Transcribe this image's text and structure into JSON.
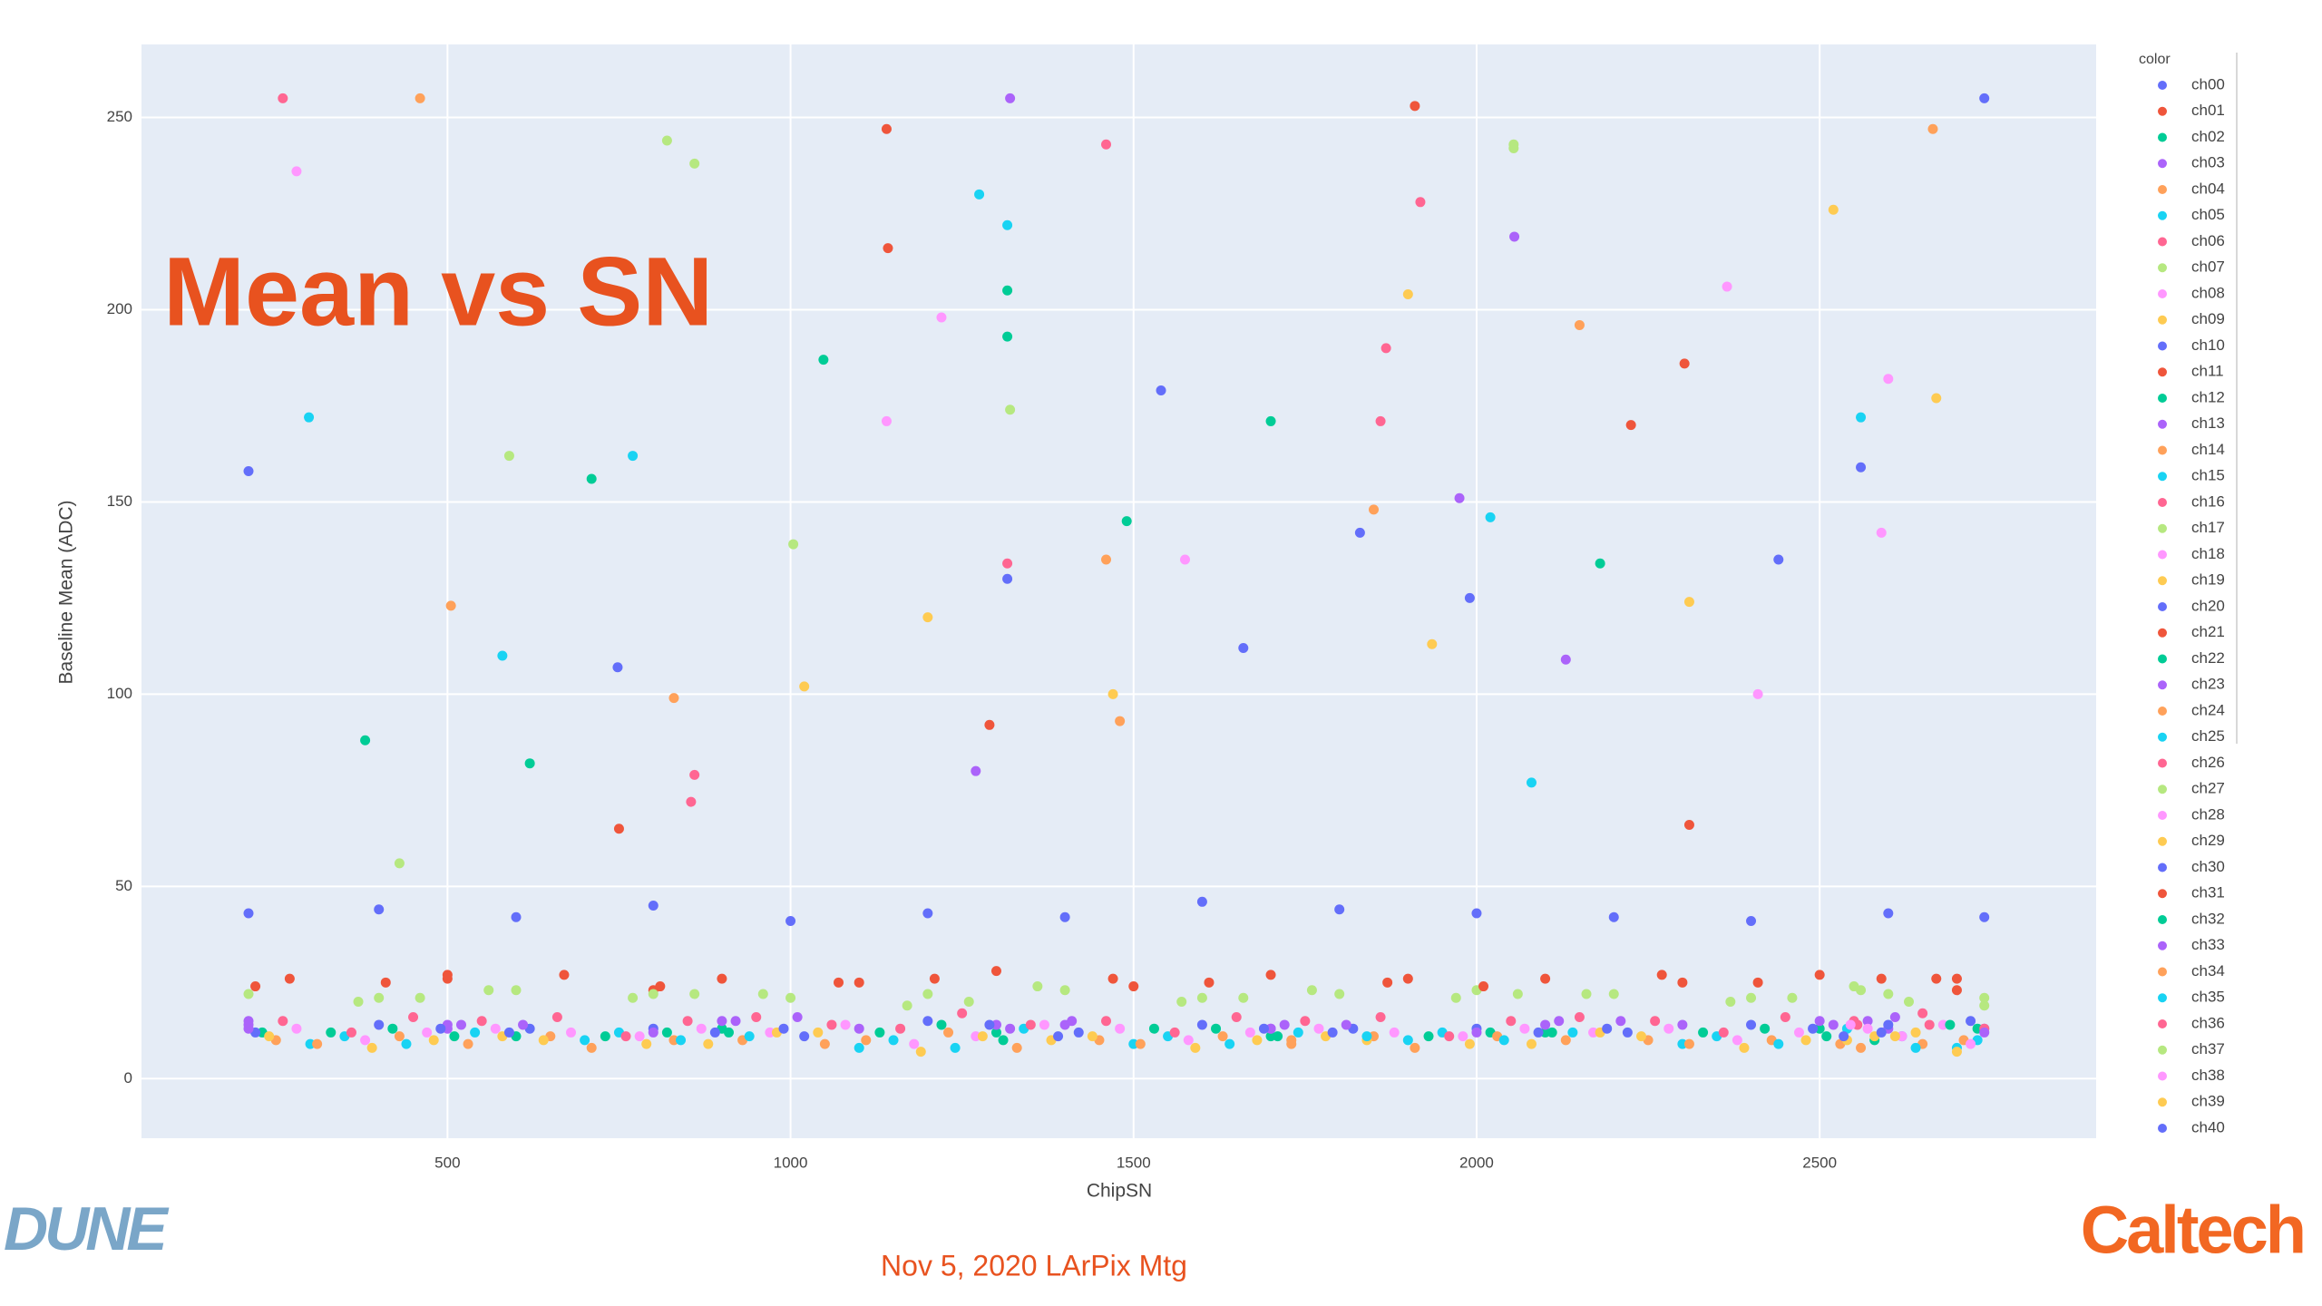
{
  "slide": {
    "title": "Mean vs SN",
    "footer": "Nov 5, 2020 LArPix Mtg",
    "logo_left": "DUNE",
    "logo_right": "Caltech"
  },
  "chart_data": {
    "type": "scatter",
    "x_label": "ChipSN",
    "y_label": "Baseline Mean (ADC)",
    "legend_title": "color",
    "xlim": [
      54,
      2903
    ],
    "ylim": [
      -15.5,
      269
    ],
    "xticks": [
      500,
      1000,
      1500,
      2000,
      2500
    ],
    "yticks": [
      0,
      50,
      100,
      150,
      200,
      250
    ],
    "grid": true,
    "legend": "right",
    "series": [
      {
        "name": "ch00",
        "color": "#636efa",
        "x": [
          210,
          400,
          600,
          800,
          1000,
          1200,
          1400,
          1600,
          1800,
          2000,
          2200,
          2400,
          2600,
          2740,
          210,
          1316
        ],
        "values": [
          43,
          44,
          42,
          45,
          41,
          43,
          42,
          46,
          44,
          43,
          42,
          41,
          43,
          42,
          158,
          130
        ]
      },
      {
        "name": "ch01",
        "color": "#EF553B",
        "x": [
          220,
          500,
          800,
          1100,
          1500,
          1900,
          2300,
          2700,
          1142,
          1910
        ],
        "values": [
          24,
          26,
          23,
          25,
          24,
          26,
          25,
          23,
          216,
          253
        ]
      },
      {
        "name": "ch02",
        "color": "#00cc96",
        "x": [
          230,
          600,
          900,
          1300,
          1700,
          2100,
          2500,
          1316,
          1048,
          1700
        ],
        "values": [
          12,
          11,
          13,
          12,
          11,
          12,
          13,
          205,
          187,
          171
        ]
      },
      {
        "name": "ch03",
        "color": "#ab63fa",
        "x": [
          210,
          500,
          900,
          1300,
          1700,
          2100,
          2500,
          2740
        ],
        "values": [
          14,
          13,
          15,
          14,
          13,
          14,
          15,
          13
        ]
      },
      {
        "name": "ch04",
        "color": "#FFA15A",
        "x": [
          250,
          650,
          1050,
          1450,
          1850,
          2250,
          2650,
          460,
          1850
        ],
        "values": [
          10,
          11,
          9,
          10,
          11,
          10,
          9,
          255,
          148
        ]
      },
      {
        "name": "ch05",
        "color": "#19d3f3",
        "x": [
          300,
          700,
          1100,
          1500,
          1900,
          2300,
          2700,
          298,
          1316
        ],
        "values": [
          9,
          10,
          8,
          9,
          10,
          9,
          8,
          172,
          222
        ]
      },
      {
        "name": "ch06",
        "color": "#FF6692",
        "x": [
          260,
          660,
          1060,
          1460,
          1860,
          2260,
          2660,
          260,
          1868
        ],
        "values": [
          15,
          16,
          14,
          15,
          16,
          15,
          14,
          255,
          190
        ]
      },
      {
        "name": "ch07",
        "color": "#B6E880",
        "x": [
          210,
          400,
          600,
          800,
          1000,
          1200,
          1400,
          1600,
          1800,
          2000,
          2200,
          2400,
          2600,
          2740,
          1004,
          2054
        ],
        "values": [
          22,
          21,
          23,
          22,
          21,
          22,
          23,
          21,
          22,
          23,
          22,
          21,
          22,
          21,
          139,
          243
        ]
      },
      {
        "name": "ch08",
        "color": "#FF97FF",
        "x": [
          280,
          680,
          1080,
          1480,
          1880,
          2280,
          2680,
          280,
          1140
        ],
        "values": [
          13,
          12,
          14,
          13,
          12,
          13,
          14,
          236,
          171
        ]
      },
      {
        "name": "ch09",
        "color": "#FECB52",
        "x": [
          240,
          640,
          1040,
          1440,
          1840,
          2240,
          2640,
          1470,
          1900
        ],
        "values": [
          11,
          10,
          12,
          11,
          10,
          11,
          12,
          100,
          204
        ]
      },
      {
        "name": "ch10",
        "color": "#636efa",
        "x": [
          220,
          620,
          1020,
          1420,
          1820,
          2220,
          2620,
          748,
          1830
        ],
        "values": [
          12,
          13,
          11,
          12,
          13,
          12,
          11,
          107,
          142
        ]
      },
      {
        "name": "ch11",
        "color": "#EF553B",
        "x": [
          270,
          670,
          1070,
          1470,
          1870,
          2270,
          2670,
          750,
          2303
        ],
        "values": [
          26,
          27,
          25,
          26,
          25,
          27,
          26,
          65,
          186
        ]
      },
      {
        "name": "ch12",
        "color": "#00cc96",
        "x": [
          330,
          730,
          1130,
          1530,
          1930,
          2330,
          2730,
          620,
          1316
        ],
        "values": [
          12,
          11,
          12,
          13,
          11,
          12,
          13,
          82,
          193
        ]
      },
      {
        "name": "ch13",
        "color": "#ab63fa",
        "x": [
          210,
          610,
          1010,
          1410,
          1810,
          2210,
          2610,
          1320,
          2055
        ],
        "values": [
          15,
          14,
          16,
          15,
          14,
          15,
          16,
          255,
          219
        ]
      },
      {
        "name": "ch14",
        "color": "#FFA15A",
        "x": [
          310,
          710,
          1110,
          1510,
          1910,
          2310,
          2710,
          505,
          1480
        ],
        "values": [
          9,
          8,
          10,
          9,
          8,
          9,
          10,
          123,
          93
        ]
      },
      {
        "name": "ch15",
        "color": "#19d3f3",
        "x": [
          350,
          750,
          1150,
          1550,
          1950,
          2350,
          2730,
          580,
          2020
        ],
        "values": [
          11,
          12,
          10,
          11,
          12,
          11,
          10,
          110,
          146
        ]
      },
      {
        "name": "ch16",
        "color": "#FF6692",
        "x": [
          360,
          760,
          1160,
          1560,
          1960,
          2360,
          2740,
          860,
          1316
        ],
        "values": [
          12,
          11,
          13,
          12,
          11,
          12,
          13,
          79,
          134
        ]
      },
      {
        "name": "ch17",
        "color": "#B6E880",
        "x": [
          370,
          770,
          1170,
          1570,
          1970,
          2370,
          2740,
          860,
          2054
        ],
        "values": [
          20,
          21,
          19,
          20,
          21,
          20,
          19,
          238,
          242
        ]
      },
      {
        "name": "ch18",
        "color": "#FF97FF",
        "x": [
          380,
          780,
          1180,
          1580,
          1980,
          2380,
          2720,
          1220,
          2410
        ],
        "values": [
          10,
          11,
          9,
          10,
          11,
          10,
          9,
          198,
          100
        ]
      },
      {
        "name": "ch19",
        "color": "#FECB52",
        "x": [
          390,
          790,
          1190,
          1590,
          1990,
          2390,
          2700,
          1200,
          2670
        ],
        "values": [
          8,
          9,
          7,
          8,
          9,
          8,
          7,
          120,
          177
        ]
      },
      {
        "name": "ch20",
        "color": "#636efa",
        "x": [
          400,
          800,
          1200,
          1600,
          2000,
          2400,
          2720,
          1540,
          2560
        ],
        "values": [
          14,
          13,
          15,
          14,
          13,
          14,
          15,
          179,
          159
        ]
      },
      {
        "name": "ch21",
        "color": "#EF553B",
        "x": [
          410,
          810,
          1210,
          1610,
          2010,
          2410,
          2700,
          1290,
          2310
        ],
        "values": [
          25,
          24,
          26,
          25,
          24,
          25,
          26,
          92,
          66
        ]
      },
      {
        "name": "ch22",
        "color": "#00cc96",
        "x": [
          420,
          820,
          1220,
          1620,
          2020,
          2420,
          2690,
          380,
          2180
        ],
        "values": [
          13,
          12,
          14,
          13,
          12,
          13,
          14,
          88,
          134
        ]
      },
      {
        "name": "ch23",
        "color": "#ab63fa",
        "x": [
          210,
          500,
          800,
          1100,
          1400,
          1700,
          2000,
          2300,
          2600,
          2740,
          1975
        ],
        "values": [
          13,
          14,
          12,
          13,
          14,
          13,
          12,
          14,
          13,
          12,
          151
        ]
      },
      {
        "name": "ch24",
        "color": "#FFA15A",
        "x": [
          430,
          830,
          1230,
          1630,
          1730,
          2030,
          2430,
          2665,
          2150
        ],
        "values": [
          11,
          10,
          12,
          11,
          10,
          11,
          10,
          247,
          196
        ]
      },
      {
        "name": "ch25",
        "color": "#19d3f3",
        "x": [
          440,
          840,
          1240,
          1640,
          2040,
          2440,
          2640,
          1275,
          2560
        ],
        "values": [
          9,
          10,
          8,
          9,
          10,
          9,
          8,
          230,
          172
        ]
      },
      {
        "name": "ch26",
        "color": "#FF6692",
        "x": [
          450,
          850,
          1250,
          1650,
          2050,
          2450,
          2650,
          855,
          1860
        ],
        "values": [
          16,
          15,
          17,
          16,
          15,
          16,
          17,
          72,
          171
        ]
      },
      {
        "name": "ch27",
        "color": "#B6E880",
        "x": [
          460,
          860,
          1260,
          1660,
          2060,
          2460,
          2630,
          1320,
          430
        ],
        "values": [
          21,
          22,
          20,
          21,
          22,
          21,
          20,
          174,
          56
        ]
      },
      {
        "name": "ch28",
        "color": "#FF97FF",
        "x": [
          470,
          870,
          1270,
          1670,
          2070,
          2470,
          2620,
          2365,
          2600
        ],
        "values": [
          12,
          13,
          11,
          12,
          13,
          12,
          11,
          206,
          182
        ]
      },
      {
        "name": "ch29",
        "color": "#FECB52",
        "x": [
          480,
          880,
          1280,
          1680,
          2080,
          2480,
          2610,
          1935,
          2520
        ],
        "values": [
          10,
          9,
          11,
          10,
          9,
          10,
          11,
          113,
          226
        ]
      },
      {
        "name": "ch30",
        "color": "#636efa",
        "x": [
          490,
          890,
          1290,
          1690,
          2090,
          2490,
          2600,
          1660,
          2440
        ],
        "values": [
          13,
          12,
          14,
          13,
          12,
          13,
          14,
          112,
          135
        ]
      },
      {
        "name": "ch31",
        "color": "#EF553B",
        "x": [
          500,
          900,
          1300,
          1700,
          2100,
          2500,
          2590,
          1140,
          2225
        ],
        "values": [
          27,
          26,
          28,
          27,
          26,
          27,
          26,
          247,
          170
        ]
      },
      {
        "name": "ch32",
        "color": "#00cc96",
        "x": [
          510,
          910,
          1310,
          1710,
          2110,
          2510,
          2580,
          710,
          1490
        ],
        "values": [
          11,
          12,
          10,
          11,
          12,
          11,
          10,
          156,
          145
        ]
      },
      {
        "name": "ch33",
        "color": "#ab63fa",
        "x": [
          520,
          920,
          1320,
          1720,
          2120,
          2520,
          2570,
          2130,
          1270
        ],
        "values": [
          14,
          15,
          13,
          14,
          15,
          14,
          15,
          109,
          80
        ]
      },
      {
        "name": "ch34",
        "color": "#FFA15A",
        "x": [
          530,
          930,
          1330,
          1730,
          2130,
          2530,
          2560,
          830,
          1460
        ],
        "values": [
          9,
          10,
          8,
          9,
          10,
          9,
          8,
          99,
          135
        ]
      },
      {
        "name": "ch35",
        "color": "#19d3f3",
        "x": [
          540,
          940,
          1340,
          1740,
          1840,
          2140,
          2540,
          770,
          2080
        ],
        "values": [
          12,
          11,
          13,
          12,
          11,
          12,
          13,
          162,
          77
        ]
      },
      {
        "name": "ch36",
        "color": "#FF6692",
        "x": [
          550,
          950,
          1350,
          1750,
          2150,
          2550,
          2555,
          1918,
          1460
        ],
        "values": [
          15,
          16,
          14,
          15,
          16,
          15,
          14,
          228,
          243
        ]
      },
      {
        "name": "ch37",
        "color": "#B6E880",
        "x": [
          560,
          960,
          1360,
          1760,
          2160,
          2560,
          2550,
          590,
          820
        ],
        "values": [
          23,
          22,
          24,
          23,
          22,
          23,
          24,
          162,
          244
        ]
      },
      {
        "name": "ch38",
        "color": "#FF97FF",
        "x": [
          570,
          970,
          1370,
          1770,
          2170,
          2570,
          2545,
          1575,
          2590
        ],
        "values": [
          13,
          12,
          14,
          13,
          12,
          13,
          14,
          135,
          142
        ]
      },
      {
        "name": "ch39",
        "color": "#FECB52",
        "x": [
          580,
          980,
          1380,
          1780,
          2180,
          2580,
          2540,
          1020,
          2310
        ],
        "values": [
          11,
          12,
          10,
          11,
          12,
          11,
          10,
          102,
          124
        ]
      },
      {
        "name": "ch40",
        "color": "#636efa",
        "x": [
          590,
          990,
          1390,
          1790,
          2190,
          2590,
          2535,
          1990,
          2740
        ],
        "values": [
          12,
          13,
          11,
          12,
          13,
          12,
          11,
          125,
          255
        ]
      }
    ]
  }
}
